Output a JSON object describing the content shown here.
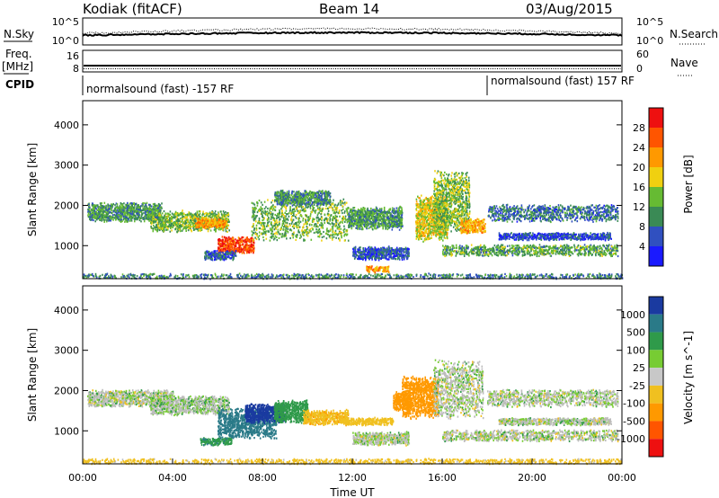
{
  "header": {
    "station": "Kodiak (fitACF)",
    "beam": "Beam 14",
    "date": "03/Aug/2015"
  },
  "ancillary": {
    "nsky_label": "N.Sky",
    "nsky_ticks": [
      "10^5",
      "10^0"
    ],
    "nsearch_label": "N.Search",
    "nsearch_ticks": [
      "10^5",
      "10^0"
    ],
    "freq_label_line1": "Freq.",
    "freq_label_line2": "[MHz]",
    "freq_ticks": [
      "16",
      "8"
    ],
    "nave_label": "Nave",
    "nave_ticks": [
      "60",
      "0"
    ],
    "cpid_label": "CPID",
    "cpid_entries": [
      {
        "text": "normalsound (fast) -157 RF",
        "start_hour": 0
      },
      {
        "text": "normalsound (fast) 157 RF",
        "start_hour": 18
      }
    ]
  },
  "colors": {
    "power": [
      "#1a1aff",
      "#3050c0",
      "#3a8a55",
      "#66bb33",
      "#f0d010",
      "#ff9900",
      "#ff5500",
      "#ee1010"
    ],
    "velocity": [
      "#1a3aa0",
      "#2a7a88",
      "#2f9a4a",
      "#77cc33",
      "#c8c8c8",
      "#f0c020",
      "#ff9900",
      "#ff5500",
      "#ee1010"
    ],
    "ground_scatter": "#bdbdbd"
  },
  "chart_data": [
    {
      "type": "heatmap",
      "name": "Power",
      "ylabel": "Slant Range [km]",
      "ylim": [
        180,
        4600
      ],
      "xlim": [
        0,
        24
      ],
      "yticks": [
        "1000",
        "2000",
        "3000",
        "4000"
      ],
      "ytick_values": [
        1000,
        2000,
        3000,
        4000
      ],
      "colorbar_label": "Power [dB]",
      "colorbar_ticks": [
        "4",
        "8",
        "12",
        "16",
        "20",
        "24",
        "28"
      ],
      "colorbar_range": [
        0,
        32
      ],
      "scatter_regions": [
        {
          "t0": 0.2,
          "t1": 3.5,
          "r0": 1600,
          "r1": 2100,
          "val": 11
        },
        {
          "t0": 3.0,
          "t1": 6.5,
          "r0": 1350,
          "r1": 1900,
          "val": 14
        },
        {
          "t0": 5.0,
          "t1": 6.4,
          "r0": 1450,
          "r1": 1700,
          "val": 21
        },
        {
          "t0": 6.0,
          "t1": 7.6,
          "r0": 800,
          "r1": 1250,
          "val": 27
        },
        {
          "t0": 5.4,
          "t1": 6.8,
          "r0": 650,
          "r1": 900,
          "val": 7
        },
        {
          "t0": 7.5,
          "t1": 11.8,
          "r0": 1100,
          "r1": 2200,
          "val": 13
        },
        {
          "t0": 8.5,
          "t1": 11.0,
          "r0": 2000,
          "r1": 2400,
          "val": 10
        },
        {
          "t0": 11.8,
          "t1": 14.2,
          "r0": 1400,
          "r1": 2000,
          "val": 11
        },
        {
          "t0": 12.0,
          "t1": 14.5,
          "r0": 650,
          "r1": 1000,
          "val": 6
        },
        {
          "t0": 12.6,
          "t1": 13.6,
          "r0": 350,
          "r1": 520,
          "val": 22
        },
        {
          "t0": 14.8,
          "t1": 16.2,
          "r0": 1100,
          "r1": 2300,
          "val": 18
        },
        {
          "t0": 15.6,
          "t1": 17.2,
          "r0": 1300,
          "r1": 2900,
          "val": 14
        },
        {
          "t0": 16.8,
          "t1": 17.9,
          "r0": 1300,
          "r1": 1700,
          "val": 21
        },
        {
          "t0": 16.0,
          "t1": 23.8,
          "r0": 750,
          "r1": 1050,
          "val": 12
        },
        {
          "t0": 18.0,
          "t1": 23.8,
          "r0": 1600,
          "r1": 2050,
          "val": 8
        },
        {
          "t0": 18.5,
          "t1": 23.5,
          "r0": 1150,
          "r1": 1350,
          "val": 5
        },
        {
          "t0": 0.0,
          "t1": 24.0,
          "r0": 190,
          "r1": 330,
          "val": 9
        }
      ]
    },
    {
      "type": "heatmap",
      "name": "Velocity",
      "ylabel": "Slant Range [km]",
      "ylim": [
        180,
        4600
      ],
      "xlim": [
        0,
        24
      ],
      "yticks": [
        "1000",
        "2000",
        "3000",
        "4000"
      ],
      "ytick_values": [
        1000,
        2000,
        3000,
        4000
      ],
      "xlabel": "Time UT",
      "xticks": [
        "00:00",
        "04:00",
        "08:00",
        "12:00",
        "16:00",
        "20:00",
        "00:00"
      ],
      "xtick_values": [
        0,
        4,
        8,
        12,
        16,
        20,
        24
      ],
      "colorbar_label": "Velocity [m s^-1]",
      "colorbar_ticks": [
        "1000",
        "500",
        "100",
        "25",
        "-25",
        "-100",
        "-500",
        "-1000"
      ],
      "scatter_regions": [
        {
          "t0": 0.2,
          "t1": 4.0,
          "r0": 1600,
          "r1": 2050,
          "val": 0
        },
        {
          "t0": 3.0,
          "t1": 6.5,
          "r0": 1400,
          "r1": 1900,
          "val": 5
        },
        {
          "t0": 6.0,
          "t1": 8.6,
          "r0": 800,
          "r1": 1600,
          "val": 300
        },
        {
          "t0": 7.2,
          "t1": 9.0,
          "r0": 1200,
          "r1": 1700,
          "val": 700
        },
        {
          "t0": 5.2,
          "t1": 6.6,
          "r0": 650,
          "r1": 850,
          "val": 80
        },
        {
          "t0": 8.5,
          "t1": 10.0,
          "r0": 1200,
          "r1": 1800,
          "val": 60
        },
        {
          "t0": 9.8,
          "t1": 11.8,
          "r0": 1150,
          "r1": 1550,
          "val": -80
        },
        {
          "t0": 11.5,
          "t1": 13.8,
          "r0": 1150,
          "r1": 1350,
          "val": -60
        },
        {
          "t0": 14.2,
          "t1": 15.8,
          "r0": 1300,
          "r1": 2400,
          "val": -400
        },
        {
          "t0": 13.8,
          "t1": 14.6,
          "r0": 1500,
          "r1": 2000,
          "val": -150
        },
        {
          "t0": 15.6,
          "t1": 17.8,
          "r0": 1300,
          "r1": 2800,
          "val": 0
        },
        {
          "t0": 16.0,
          "t1": 23.8,
          "r0": 750,
          "r1": 1050,
          "val": 0
        },
        {
          "t0": 18.0,
          "t1": 23.8,
          "r0": 1600,
          "r1": 2050,
          "val": 0
        },
        {
          "t0": 18.5,
          "t1": 23.5,
          "r0": 1150,
          "r1": 1350,
          "val": 0
        },
        {
          "t0": 12.0,
          "t1": 14.5,
          "r0": 650,
          "r1": 1000,
          "val": 0
        },
        {
          "t0": 0.0,
          "t1": 24.0,
          "r0": 190,
          "r1": 330,
          "val": -50
        }
      ]
    }
  ]
}
